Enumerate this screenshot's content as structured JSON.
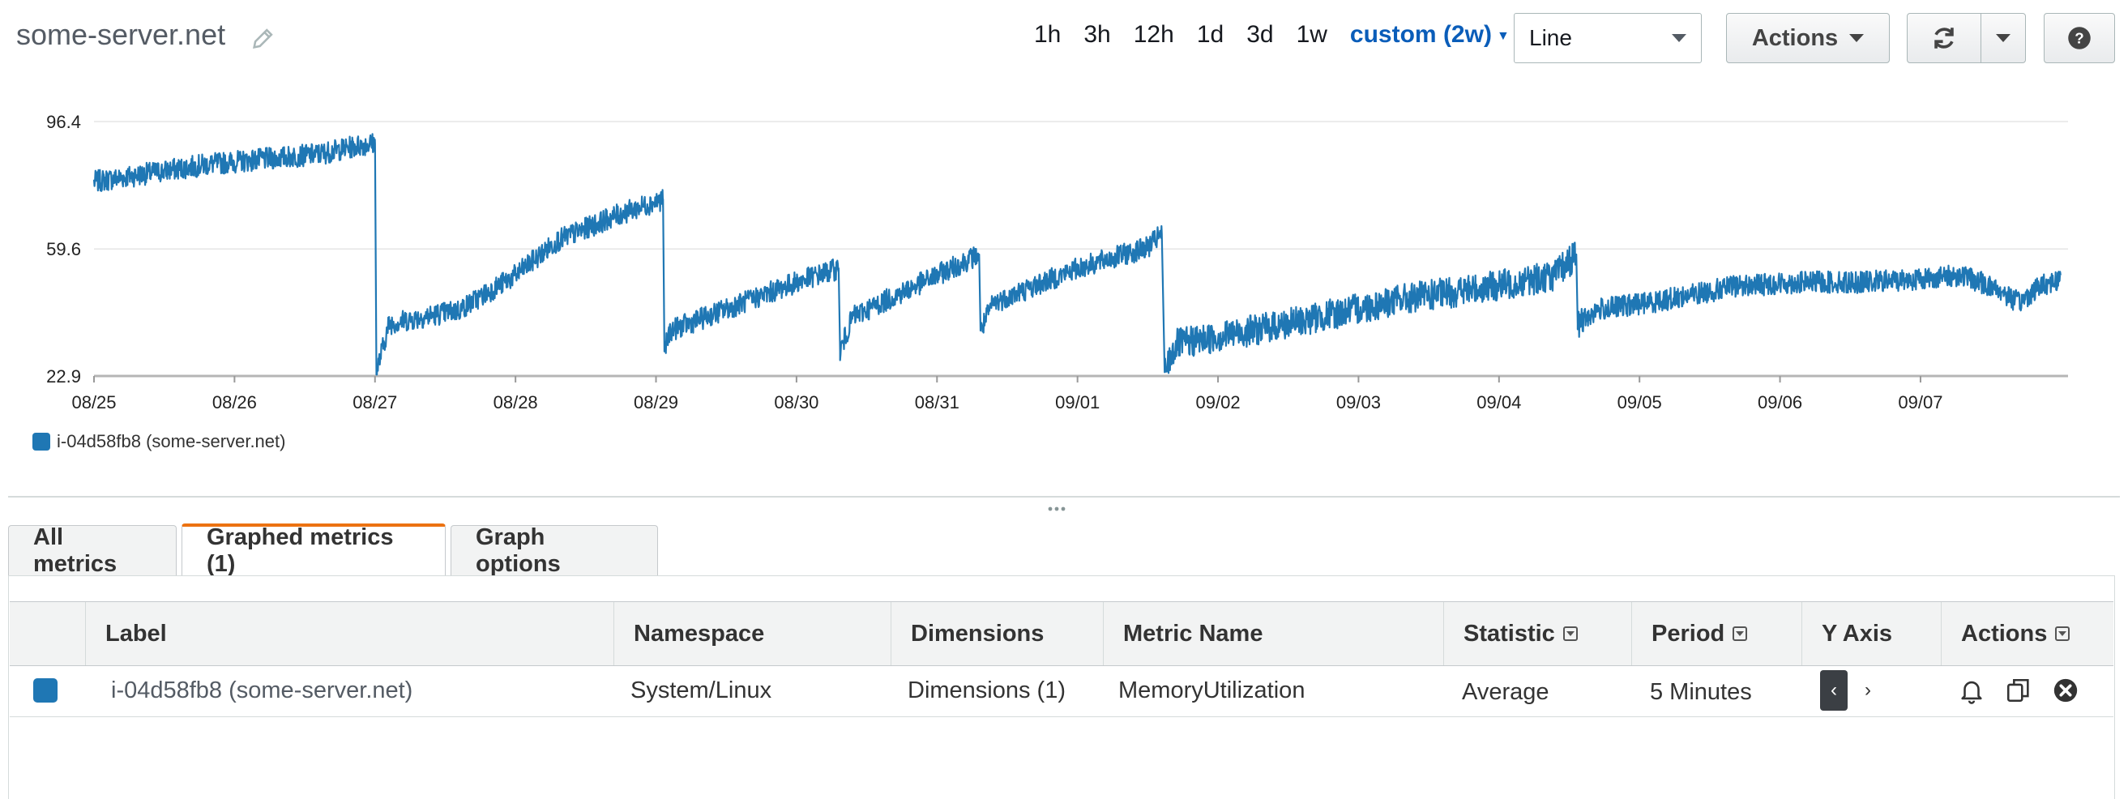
{
  "header": {
    "title": "some-server.net",
    "time_ranges": [
      "1h",
      "3h",
      "12h",
      "1d",
      "3d",
      "1w"
    ],
    "custom_range": "custom (2w)",
    "graph_type": "Line",
    "actions_label": "Actions"
  },
  "colors": {
    "series": "#1f77b4",
    "accent_tab": "#ec7211",
    "link": "#0a5db9"
  },
  "chart_data": {
    "type": "line",
    "title": "",
    "xlabel": "",
    "ylabel": "",
    "y_ticks": [
      "22.9",
      "59.6",
      "96.4"
    ],
    "ylim": [
      22.9,
      96.4
    ],
    "x_ticks": [
      "08/25",
      "08/26",
      "08/27",
      "08/28",
      "08/29",
      "08/30",
      "08/31",
      "09/01",
      "09/02",
      "09/03",
      "09/04",
      "09/05",
      "09/06",
      "09/07"
    ],
    "x_range_days": [
      0,
      14.05
    ],
    "grid": true,
    "legend_position": "bottom-left",
    "series": [
      {
        "name": "i-04d58fb8 (some-server.net)",
        "color": "#1f77b4",
        "points": [
          [
            0,
            79
          ],
          [
            0.8,
            84
          ],
          [
            1.6,
            87
          ],
          [
            1.95,
            90
          ],
          [
            2.0,
            90
          ],
          [
            2.01,
            24
          ],
          [
            2.1,
            38
          ],
          [
            2.6,
            42
          ],
          [
            3.0,
            52
          ],
          [
            3.3,
            62
          ],
          [
            3.7,
            69
          ],
          [
            4.05,
            74
          ],
          [
            4.06,
            30
          ],
          [
            4.1,
            36
          ],
          [
            5.0,
            50
          ],
          [
            5.3,
            54
          ],
          [
            5.31,
            30
          ],
          [
            5.4,
            40
          ],
          [
            5.9,
            50
          ],
          [
            6.3,
            58
          ],
          [
            6.31,
            36
          ],
          [
            6.4,
            44
          ],
          [
            7.0,
            54
          ],
          [
            7.5,
            60
          ],
          [
            7.6,
            64
          ],
          [
            7.62,
            24
          ],
          [
            7.7,
            32
          ],
          [
            8.5,
            38
          ],
          [
            9.3,
            45
          ],
          [
            10.0,
            49
          ],
          [
            10.4,
            52
          ],
          [
            10.55,
            58
          ],
          [
            10.56,
            38
          ],
          [
            10.7,
            42
          ],
          [
            11.2,
            45
          ],
          [
            11.7,
            49
          ],
          [
            12.2,
            50
          ],
          [
            12.6,
            50
          ],
          [
            13.0,
            51
          ],
          [
            13.3,
            52
          ],
          [
            13.55,
            48
          ],
          [
            13.7,
            44
          ],
          [
            13.85,
            49
          ],
          [
            14.0,
            51
          ]
        ]
      }
    ]
  },
  "tabs": {
    "all_metrics": "All metrics",
    "graphed_metrics": "Graphed metrics (1)",
    "graph_options": "Graph options"
  },
  "table": {
    "headers": {
      "label": "Label",
      "namespace": "Namespace",
      "dimensions": "Dimensions",
      "metric_name": "Metric Name",
      "statistic": "Statistic",
      "period": "Period",
      "y_axis": "Y Axis",
      "actions": "Actions"
    },
    "rows": [
      {
        "label": "i-04d58fb8 (some-server.net)",
        "namespace": "System/Linux",
        "dimensions": "Dimensions (1)",
        "metric_name": "MemoryUtilization",
        "statistic": "Average",
        "period": "5 Minutes"
      }
    ]
  }
}
